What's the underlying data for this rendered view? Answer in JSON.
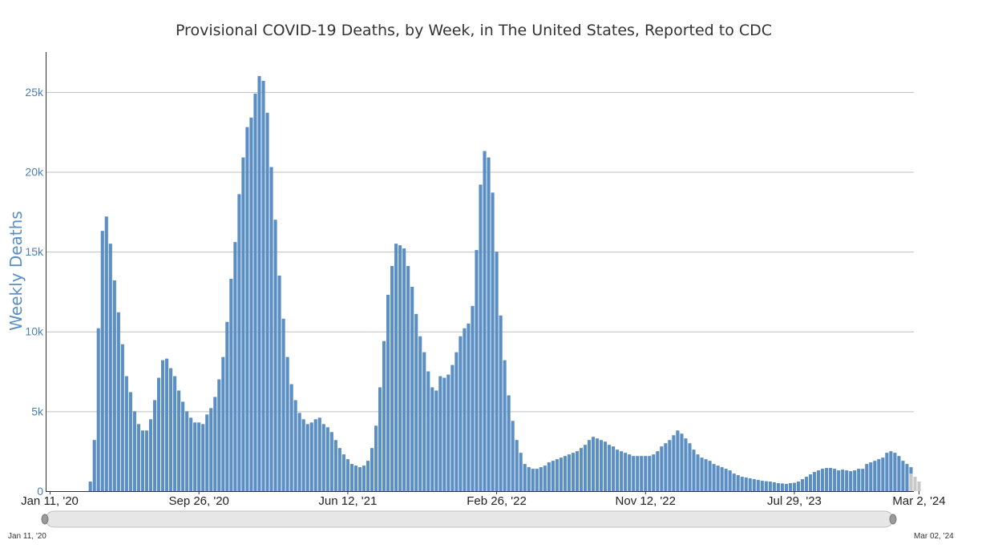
{
  "chart_data": {
    "type": "bar",
    "title": "Provisional COVID-19 Deaths, by Week, in The United States, Reported to CDC",
    "ylabel": "Weekly Deaths",
    "xlabel": "",
    "ylim": [
      0,
      27500
    ],
    "y_ticks": [
      {
        "value": 0,
        "label": "0"
      },
      {
        "value": 5000,
        "label": "5k"
      },
      {
        "value": 10000,
        "label": "10k"
      },
      {
        "value": 15000,
        "label": "15k"
      },
      {
        "value": 20000,
        "label": "20k"
      },
      {
        "value": 25000,
        "label": "25k"
      }
    ],
    "x_ticks": [
      {
        "index": 0,
        "label": "Jan 11, '20"
      },
      {
        "index": 37,
        "label": "Sep 26, '20"
      },
      {
        "index": 74,
        "label": "Jun 12, '21"
      },
      {
        "index": 111,
        "label": "Feb 26, '22"
      },
      {
        "index": 148,
        "label": "Nov 12, '22"
      },
      {
        "index": 185,
        "label": "Jul 29, '23"
      },
      {
        "index": 216,
        "label": "Mar 2, '24"
      }
    ],
    "grid": true,
    "first_week": "Jan 11, '20",
    "last_week": "Mar 2, '24",
    "series": [
      {
        "color": "#5b8ec2",
        "values": [
          0,
          0,
          0,
          0,
          0,
          0,
          0,
          0,
          0,
          0,
          600,
          3200,
          10200,
          16300,
          17200,
          15500,
          13200,
          11200,
          9200,
          7200,
          6200,
          5000,
          4200,
          3800,
          3800,
          4500,
          5700,
          7100,
          8200,
          8300,
          7700,
          7200,
          6300,
          5600,
          5000,
          4600,
          4300,
          4300,
          4200,
          4800,
          5200,
          5900,
          7000,
          8400,
          10600,
          13300,
          15600,
          18600,
          20900,
          22800,
          23400,
          24900,
          26000,
          25700,
          23700,
          20300,
          17000,
          13500,
          10800,
          8400,
          6700,
          5700,
          4900,
          4500,
          4200,
          4300,
          4500,
          4600,
          4200,
          4000,
          3700,
          3200,
          2700,
          2300,
          2000,
          1700,
          1600,
          1500,
          1600,
          1900,
          2700,
          4100,
          6500,
          9400,
          12300,
          14100,
          15500,
          15400,
          15200,
          14100,
          12800,
          11100,
          9700,
          8700,
          7500,
          6500,
          6300,
          7200,
          7100,
          7300,
          7900,
          8700,
          9700,
          10200,
          10500,
          11600,
          15100,
          19200,
          21300,
          20900,
          18700,
          15000,
          11000,
          8200,
          6000,
          4400,
          3200,
          2400,
          1700,
          1500,
          1400,
          1400,
          1500,
          1600,
          1800,
          1900,
          2000,
          2100,
          2200,
          2300,
          2400,
          2500,
          2700,
          2900,
          3200,
          3400,
          3300,
          3200,
          3100,
          2900,
          2800,
          2600,
          2500,
          2400,
          2300,
          2200,
          2200,
          2200,
          2200,
          2200,
          2300,
          2500,
          2800,
          3000,
          3200,
          3500,
          3800,
          3600,
          3300,
          3000,
          2600,
          2300,
          2100,
          2000,
          1900,
          1700,
          1600,
          1500,
          1400,
          1300,
          1100,
          1000,
          900,
          850,
          800,
          750,
          700,
          650,
          620,
          600,
          550,
          500,
          480,
          450,
          500,
          520,
          600,
          750,
          900,
          1050,
          1200,
          1300,
          1400,
          1450,
          1450,
          1400,
          1300,
          1350,
          1300,
          1250,
          1300,
          1400,
          1400,
          1700,
          1800,
          1900,
          2000,
          2100,
          2400,
          2500,
          2400,
          2200,
          1900,
          1700,
          1500
        ]
      },
      {
        "color": "#c8c8c8",
        "values": [
          0,
          0,
          0,
          0,
          0,
          0,
          0,
          0,
          0,
          0,
          0,
          0,
          0,
          0,
          0,
          0,
          0,
          0,
          0,
          0,
          0,
          0,
          0,
          0,
          0,
          0,
          0,
          0,
          0,
          0,
          0,
          0,
          0,
          0,
          0,
          0,
          0,
          0,
          0,
          0,
          0,
          0,
          0,
          0,
          0,
          0,
          0,
          0,
          0,
          0,
          0,
          0,
          0,
          0,
          0,
          0,
          0,
          0,
          0,
          0,
          0,
          0,
          0,
          0,
          0,
          0,
          0,
          0,
          0,
          0,
          0,
          0,
          0,
          0,
          0,
          0,
          0,
          0,
          0,
          0,
          0,
          0,
          0,
          0,
          0,
          0,
          0,
          0,
          0,
          0,
          0,
          0,
          0,
          0,
          0,
          0,
          0,
          0,
          0,
          0,
          0,
          0,
          0,
          0,
          0,
          0,
          0,
          0,
          0,
          0,
          0,
          0,
          0,
          0,
          0,
          0,
          0,
          0,
          0,
          0,
          0,
          0,
          0,
          0,
          0,
          0,
          0,
          0,
          0,
          0,
          0,
          0,
          0,
          0,
          0,
          0,
          0,
          0,
          0,
          0,
          0,
          0,
          0,
          0,
          0,
          0,
          0,
          0,
          0,
          0,
          0,
          0,
          0,
          0,
          0,
          0,
          0,
          0,
          0,
          0,
          0,
          0,
          0,
          0,
          0,
          0,
          0,
          0,
          0,
          0,
          0,
          0,
          0,
          0,
          0,
          0,
          0,
          0,
          0,
          0,
          0,
          0,
          0,
          0,
          0,
          0,
          0,
          0,
          0,
          0,
          0,
          0,
          0,
          0,
          0,
          0,
          0,
          0,
          0,
          0,
          0,
          0,
          0,
          0,
          0,
          0,
          0,
          0,
          0,
          0,
          0,
          0,
          0,
          0,
          1100,
          900,
          600
        ]
      }
    ]
  },
  "navigator": {
    "start_label": "Jan 11, '20",
    "end_label": "Mar 02, '24"
  }
}
